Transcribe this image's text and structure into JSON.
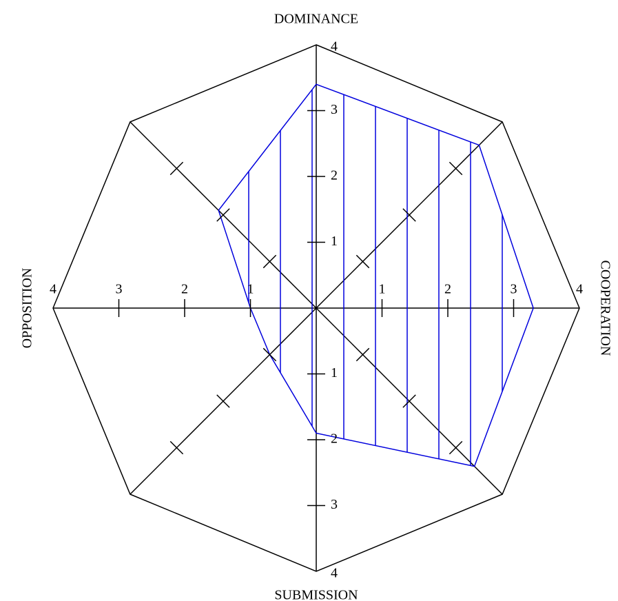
{
  "chart_data": {
    "type": "radar",
    "categories": [
      "DOMINANCE",
      null,
      "COOPERATION",
      null,
      "SUBMISSION",
      null,
      "OPPOSITION",
      null
    ],
    "values": [
      3.4,
      3.5,
      3.3,
      3.4,
      1.9,
      1.0,
      1.0,
      2.1
    ],
    "color": "#0000dd",
    "rlim": [
      0,
      4
    ],
    "rticks": [
      1,
      2,
      3,
      4
    ]
  }
}
